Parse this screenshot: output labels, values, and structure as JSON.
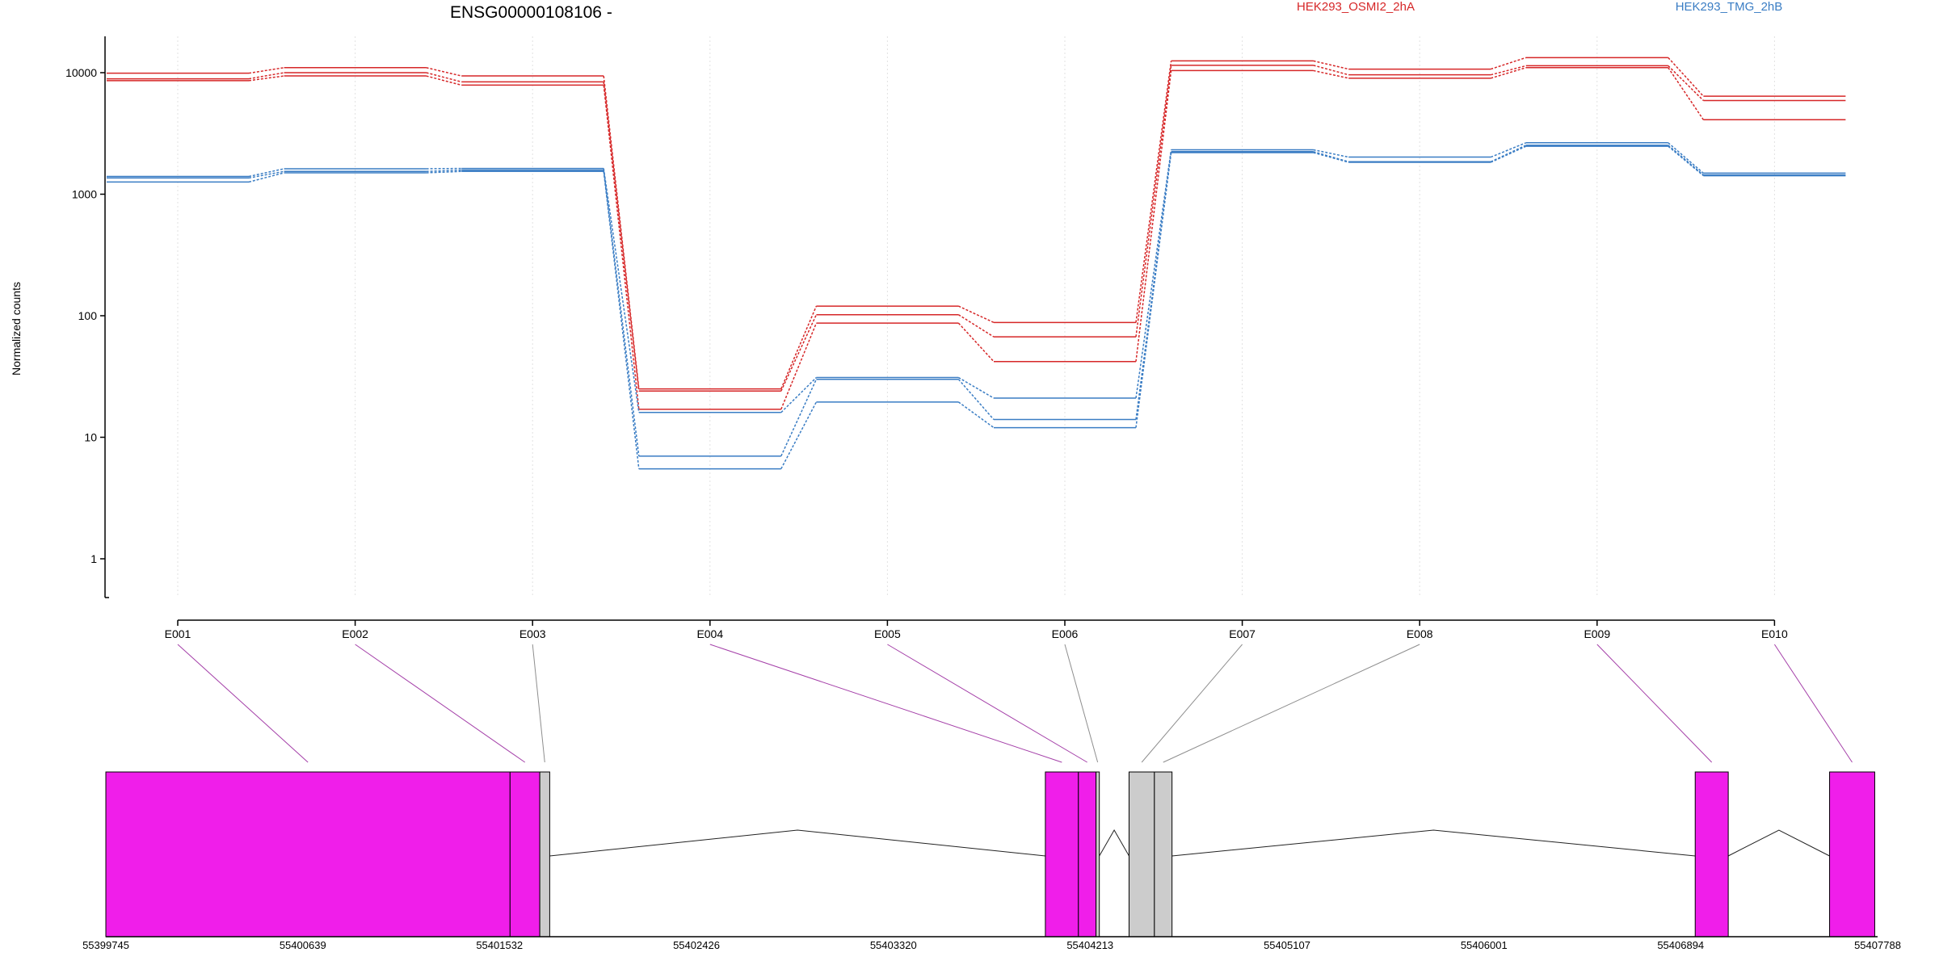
{
  "chart_data": {
    "type": "line",
    "title": "ENSG00000108106 -",
    "ylabel": "Normalized counts",
    "yscale": "log",
    "yticks": [
      1,
      10,
      100,
      1000,
      10000
    ],
    "categories": [
      "E001",
      "E002",
      "E003",
      "E004",
      "E005",
      "E006",
      "E007",
      "E008",
      "E009",
      "E010"
    ],
    "legend": [
      {
        "name": "HEK293_OSMI2_2hA",
        "color": "#d62728"
      },
      {
        "name": "HEK293_TMG_2hB",
        "color": "#3a7dc4"
      }
    ],
    "series": [
      {
        "group": "HEK293_OSMI2_2hA",
        "color": "#d62728",
        "values": [
          9900,
          11000,
          9400,
          25,
          120,
          88,
          12500,
          10700,
          13300,
          6400
        ]
      },
      {
        "group": "HEK293_OSMI2_2hA",
        "color": "#d62728",
        "values": [
          8900,
          10000,
          8400,
          24,
          102,
          67,
          11500,
          9600,
          11400,
          5900
        ]
      },
      {
        "group": "HEK293_OSMI2_2hA",
        "color": "#d62728",
        "values": [
          8600,
          9400,
          7900,
          17,
          87,
          42,
          10400,
          9000,
          11000,
          4100
        ]
      },
      {
        "group": "HEK293_TMG_2hB",
        "color": "#3a7dc4",
        "values": [
          1400,
          1620,
          1630,
          16,
          31,
          21,
          2320,
          2020,
          2650,
          1490
        ]
      },
      {
        "group": "HEK293_TMG_2hB",
        "color": "#3a7dc4",
        "values": [
          1360,
          1540,
          1580,
          7,
          30,
          14,
          2240,
          1850,
          2530,
          1440
        ]
      },
      {
        "group": "HEK293_TMG_2hB",
        "color": "#3a7dc4",
        "values": [
          1260,
          1500,
          1540,
          5.5,
          19.5,
          12,
          2200,
          1830,
          2480,
          1420
        ]
      }
    ],
    "gene_model": {
      "coord_min": 55399745,
      "coord_max": 55407788,
      "coord_ticks": [
        55399745,
        55400639,
        55401532,
        55402426,
        55403320,
        55404213,
        55405107,
        55406001,
        55406894,
        55407788
      ],
      "exons": [
        {
          "id": "E001",
          "start": 55399745,
          "end": 55401580,
          "color": "#f01eea"
        },
        {
          "id": "E002",
          "start": 55401580,
          "end": 55401715,
          "color": "#f01eea"
        },
        {
          "id": "E003",
          "start": 55401715,
          "end": 55401760,
          "color": "#cccccc"
        },
        {
          "id": "E004",
          "start": 55404010,
          "end": 55404160,
          "color": "#f01eea"
        },
        {
          "id": "E005",
          "start": 55404160,
          "end": 55404240,
          "color": "#f01eea"
        },
        {
          "id": "E006",
          "start": 55404240,
          "end": 55404255,
          "color": "#cccccc"
        },
        {
          "id": "E007",
          "start": 55404390,
          "end": 55404505,
          "color": "#cccccc"
        },
        {
          "id": "E008",
          "start": 55404505,
          "end": 55404585,
          "color": "#cccccc"
        },
        {
          "id": "E009",
          "start": 55406960,
          "end": 55407110,
          "color": "#f01eea"
        },
        {
          "id": "E010",
          "start": 55407570,
          "end": 55407775,
          "color": "#f01eea"
        }
      ],
      "introns": [
        {
          "start": 55401760,
          "end": 55404010
        },
        {
          "start": 55404255,
          "end": 55404390
        },
        {
          "start": 55404585,
          "end": 55406960
        },
        {
          "start": 55407110,
          "end": 55407570
        }
      ]
    }
  }
}
